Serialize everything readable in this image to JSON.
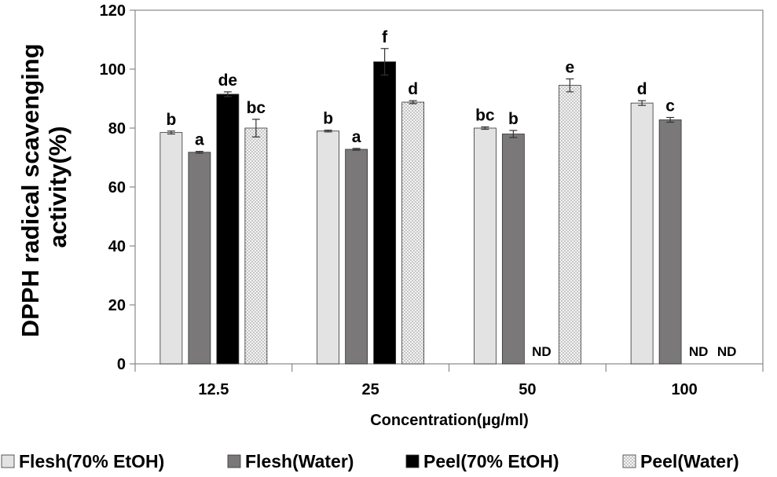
{
  "chart_data": {
    "type": "bar",
    "title": "",
    "xlabel": "Concentration(µg/ml)",
    "ylabel_lines": [
      "DPPH radical scavenging",
      "activity(%)"
    ],
    "ylim": [
      0,
      120
    ],
    "yticks": [
      0,
      20,
      40,
      60,
      80,
      100,
      120
    ],
    "categories": [
      "12.5",
      "25",
      "50",
      "100"
    ],
    "legend_position": "bottom",
    "series": [
      {
        "name": "Flesh(70% EtOH)",
        "color": "#e3e3e3",
        "pattern": "solid",
        "values": [
          78.5,
          79.0,
          80.0,
          88.5
        ],
        "errors": [
          0.5,
          0.3,
          0.4,
          0.8
        ],
        "labels": [
          "b",
          "b",
          "bc",
          "d"
        ]
      },
      {
        "name": "Flesh(Water)",
        "color": "#7a7878",
        "pattern": "solid",
        "values": [
          71.8,
          72.8,
          78.0,
          82.8
        ],
        "errors": [
          0.3,
          0.3,
          1.2,
          0.8
        ],
        "labels": [
          "a",
          "a",
          "b",
          "c"
        ]
      },
      {
        "name": "Peel(70% EtOH)",
        "color": "#000000",
        "pattern": "solid",
        "values": [
          91.5,
          102.5,
          null,
          null
        ],
        "errors": [
          0.8,
          4.5,
          null,
          null
        ],
        "labels": [
          "de",
          "f",
          "ND",
          "ND"
        ]
      },
      {
        "name": "Peel(Water)",
        "color": "#f4f4f4",
        "pattern": "dotted",
        "values": [
          80.0,
          88.8,
          94.5,
          null
        ],
        "errors": [
          3.0,
          0.5,
          2.2,
          null
        ],
        "labels": [
          "bc",
          "d",
          "e",
          "ND"
        ]
      }
    ]
  }
}
